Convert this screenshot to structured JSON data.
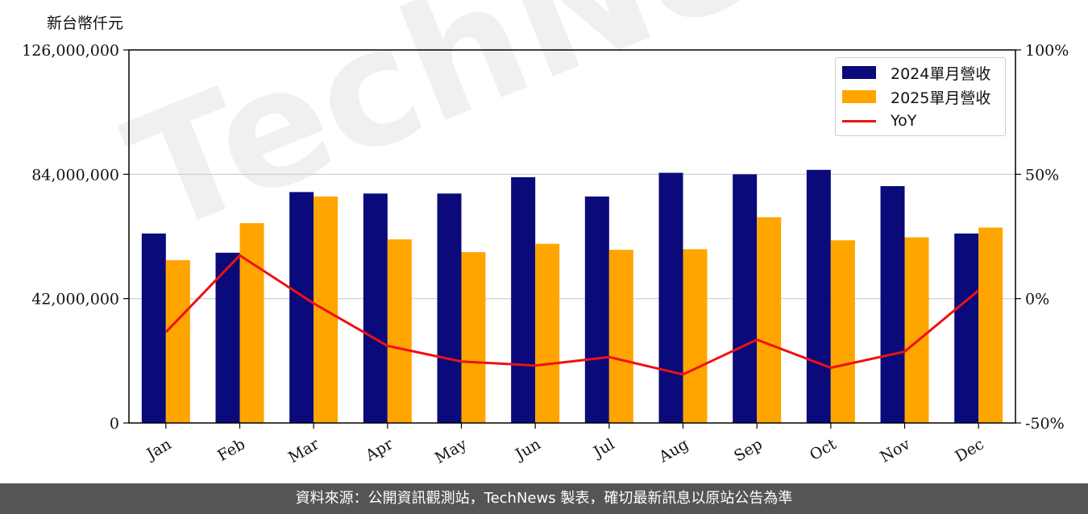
{
  "unit_label": "新台幣仟元",
  "footer": "資料來源：公開資訊觀測站，TechNews 製表，確切最新訊息以原站公告為準",
  "watermark": "TechNews",
  "colors": {
    "series2024": "#0a0a7a",
    "series2025": "#ffa500",
    "yoy": "#ee1111",
    "footer_bg": "#555555"
  },
  "chart_data": {
    "type": "bar",
    "categories": [
      "Jan",
      "Feb",
      "Mar",
      "Apr",
      "May",
      "Jun",
      "Jul",
      "Aug",
      "Sep",
      "Oct",
      "Nov",
      "Dec"
    ],
    "series": [
      {
        "name": "2024單月營收",
        "values": [
          64000000,
          57500000,
          78000000,
          77500000,
          77500000,
          83000000,
          76500000,
          84500000,
          84000000,
          85500000,
          80000000,
          64000000
        ]
      },
      {
        "name": "2025單月營收",
        "values": [
          55000000,
          67500000,
          76500000,
          62000000,
          57700000,
          60500000,
          58500000,
          58700000,
          69500000,
          61700000,
          62700000,
          66000000
        ]
      }
    ],
    "yoy": {
      "name": "YoY",
      "values": [
        -13.5,
        17.4,
        -1.9,
        -19.0,
        -25.3,
        -26.9,
        -23.5,
        -30.5,
        -16.5,
        -27.8,
        -21.3,
        3.3
      ]
    },
    "ylim": [
      0,
      126000000
    ],
    "yticks": [
      "0",
      "42,000,000",
      "84,000,000",
      "126,000,000"
    ],
    "y2lim": [
      -50,
      100
    ],
    "y2ticks": [
      "-50%",
      "0%",
      "50%",
      "100%"
    ],
    "grid": "horizontal",
    "legend": "top-right"
  }
}
